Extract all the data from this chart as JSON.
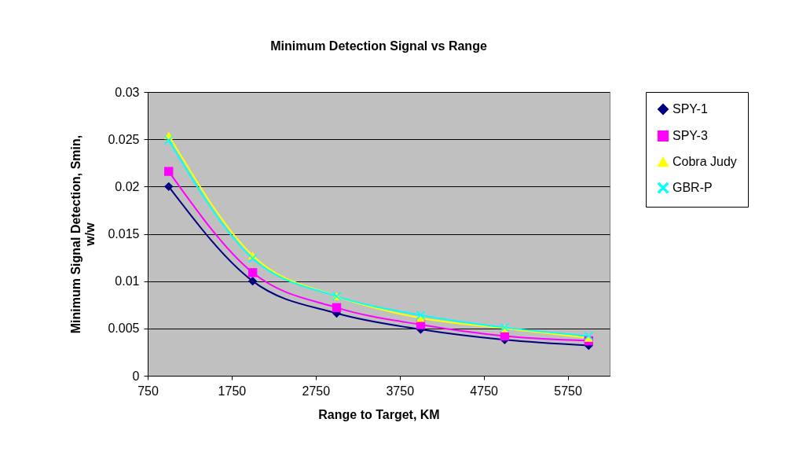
{
  "chart_data": {
    "type": "line",
    "title": "Minimum Detection Signal vs Range",
    "xlabel": "Range to Target, KM",
    "ylabel": "Minimum Signal Detection, Smin, w/w",
    "x": [
      1000,
      2000,
      3000,
      4000,
      5000,
      6000
    ],
    "series": [
      {
        "name": "SPY-1",
        "color": "#000080",
        "marker": "diamond",
        "values": [
          0.02,
          0.01,
          0.0066,
          0.0049,
          0.0038,
          0.0032
        ]
      },
      {
        "name": "SPY-3",
        "color": "#ff00ff",
        "marker": "square",
        "values": [
          0.0216,
          0.0109,
          0.0072,
          0.0054,
          0.0042,
          0.0037
        ]
      },
      {
        "name": "Cobra Judy",
        "color": "#ffff00",
        "marker": "triangle",
        "values": [
          0.0254,
          0.0127,
          0.0084,
          0.0061,
          0.005,
          0.004
        ]
      },
      {
        "name": "GBR-P",
        "color": "#00ffff",
        "marker": "cross",
        "values": [
          0.0249,
          0.0124,
          0.0084,
          0.0064,
          0.0051,
          0.0042
        ]
      }
    ],
    "xlim": [
      750,
      6250
    ],
    "xticks": [
      750,
      1750,
      2750,
      3750,
      4750,
      5750
    ],
    "ylim": [
      0,
      0.03
    ],
    "yticks": [
      0,
      0.005,
      0.01,
      0.015,
      0.02,
      0.025,
      0.03
    ],
    "grid": "y",
    "legend": "right",
    "line_style": "solid"
  }
}
